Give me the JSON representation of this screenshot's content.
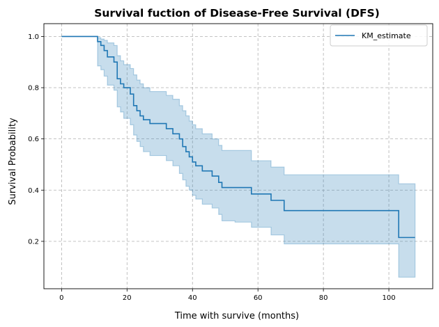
{
  "chart_data": {
    "type": "line",
    "title": "Survival fuction of Disease-Free Survival (DFS)",
    "xlabel": "Time with survive (months)",
    "ylabel": "Survival Probability",
    "xlim": [
      -5.4,
      113.4
    ],
    "ylim": [
      0.015,
      1.05
    ],
    "xticks": [
      0,
      20,
      40,
      60,
      80,
      100
    ],
    "yticks": [
      0.2,
      0.4,
      0.6,
      0.8,
      1.0
    ],
    "xtick_labels": [
      "0",
      "20",
      "40",
      "60",
      "80",
      "100"
    ],
    "ytick_labels": [
      "0.2",
      "0.4",
      "0.6",
      "0.8",
      "1.0"
    ],
    "grid": true,
    "legend": "upper-right",
    "series": [
      {
        "name": "KM_estimate",
        "color": "#1f77b4",
        "step": "post",
        "x": [
          0,
          11,
          12,
          13,
          14,
          16,
          17,
          18,
          19,
          21,
          22,
          23,
          24,
          25,
          27,
          32,
          34,
          36,
          37,
          38,
          39,
          40,
          41,
          43,
          46,
          48,
          49,
          53,
          58,
          64,
          68,
          103,
          108
        ],
        "y": [
          1.0,
          0.98,
          0.965,
          0.945,
          0.92,
          0.9,
          0.835,
          0.815,
          0.8,
          0.775,
          0.73,
          0.71,
          0.69,
          0.675,
          0.66,
          0.64,
          0.62,
          0.6,
          0.57,
          0.55,
          0.53,
          0.51,
          0.495,
          0.475,
          0.455,
          0.43,
          0.41,
          0.41,
          0.385,
          0.36,
          0.32,
          0.215,
          0.215
        ]
      }
    ],
    "confidence_band": {
      "color": "#1f77b4",
      "step": "post",
      "x": [
        0,
        11,
        12,
        13,
        14,
        16,
        17,
        18,
        19,
        21,
        22,
        23,
        24,
        25,
        27,
        32,
        34,
        36,
        37,
        38,
        39,
        40,
        41,
        43,
        46,
        48,
        49,
        53,
        58,
        64,
        68,
        103,
        108
      ],
      "lower": [
        1.0,
        0.885,
        0.87,
        0.845,
        0.81,
        0.79,
        0.725,
        0.705,
        0.68,
        0.655,
        0.615,
        0.59,
        0.57,
        0.55,
        0.535,
        0.515,
        0.495,
        0.465,
        0.44,
        0.415,
        0.4,
        0.38,
        0.365,
        0.345,
        0.33,
        0.305,
        0.28,
        0.275,
        0.255,
        0.225,
        0.19,
        0.06,
        0.06
      ],
      "upper": [
        1.0,
        0.995,
        0.99,
        0.985,
        0.975,
        0.965,
        0.925,
        0.905,
        0.89,
        0.875,
        0.85,
        0.83,
        0.815,
        0.8,
        0.785,
        0.77,
        0.755,
        0.73,
        0.71,
        0.69,
        0.67,
        0.655,
        0.64,
        0.62,
        0.6,
        0.575,
        0.555,
        0.555,
        0.515,
        0.49,
        0.46,
        0.425,
        0.425
      ]
    }
  }
}
